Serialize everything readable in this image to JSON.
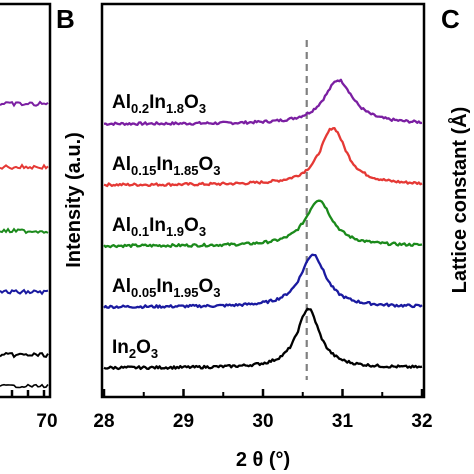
{
  "panels": {
    "left": {
      "letter": "",
      "x_tick_label": "70"
    },
    "center": {
      "letter": "B"
    },
    "right": {
      "letter": "C",
      "ylabel": "Lattice constant (Å)"
    }
  },
  "chart_data": {
    "type": "line",
    "xlabel": "2 θ (°)",
    "ylabel": "Intensity (a.u.)",
    "xlim": [
      28,
      32
    ],
    "xticks": [
      "28",
      "29",
      "30",
      "31",
      "32"
    ],
    "reference_line": {
      "x": 30.55,
      "style": "dashed",
      "color": "#808080"
    },
    "series": [
      {
        "name": "Al0.2In1.8O3",
        "color": "#7B1FA2",
        "offset": 4,
        "peak_x": 30.95,
        "peak_height": 1.0,
        "width": 0.22,
        "label": [
          {
            "t": "Al"
          },
          {
            "t": "0.2",
            "sub": true
          },
          {
            "t": "In"
          },
          {
            "t": "1.8",
            "sub": true
          },
          {
            "t": "O"
          },
          {
            "t": "3",
            "sub": true
          }
        ]
      },
      {
        "name": "Al0.15In1.85O3",
        "color": "#E53935",
        "offset": 3,
        "peak_x": 30.88,
        "peak_height": 1.3,
        "width": 0.2,
        "label": [
          {
            "t": "Al"
          },
          {
            "t": "0.15",
            "sub": true
          },
          {
            "t": "In"
          },
          {
            "t": "1.85",
            "sub": true
          },
          {
            "t": "O"
          },
          {
            "t": "3",
            "sub": true
          }
        ]
      },
      {
        "name": "Al0.1In1.9O3",
        "color": "#1B8A1B",
        "offset": 2,
        "peak_x": 30.7,
        "peak_height": 1.05,
        "width": 0.2,
        "label": [
          {
            "t": "Al"
          },
          {
            "t": "0.1",
            "sub": true
          },
          {
            "t": "In"
          },
          {
            "t": "1.9",
            "sub": true
          },
          {
            "t": "O"
          },
          {
            "t": "3",
            "sub": true
          }
        ]
      },
      {
        "name": "Al0.05In1.95O3",
        "color": "#1A1AA0",
        "offset": 1,
        "peak_x": 30.63,
        "peak_height": 1.2,
        "width": 0.19,
        "label": [
          {
            "t": "Al"
          },
          {
            "t": "0.05",
            "sub": true
          },
          {
            "t": "In"
          },
          {
            "t": "1.95",
            "sub": true
          },
          {
            "t": "O"
          },
          {
            "t": "3",
            "sub": true
          }
        ]
      },
      {
        "name": "In2O3",
        "color": "#000000",
        "offset": 0,
        "peak_x": 30.57,
        "peak_height": 1.35,
        "width": 0.17,
        "label": [
          {
            "t": "In"
          },
          {
            "t": "2",
            "sub": true
          },
          {
            "t": "O"
          },
          {
            "t": "3",
            "sub": true
          }
        ]
      }
    ],
    "left_panel_fragment": {
      "series_colors": [
        "#7B1FA2",
        "#E53935",
        "#1B8A1B",
        "#1A1AA0",
        "#000000"
      ]
    }
  }
}
